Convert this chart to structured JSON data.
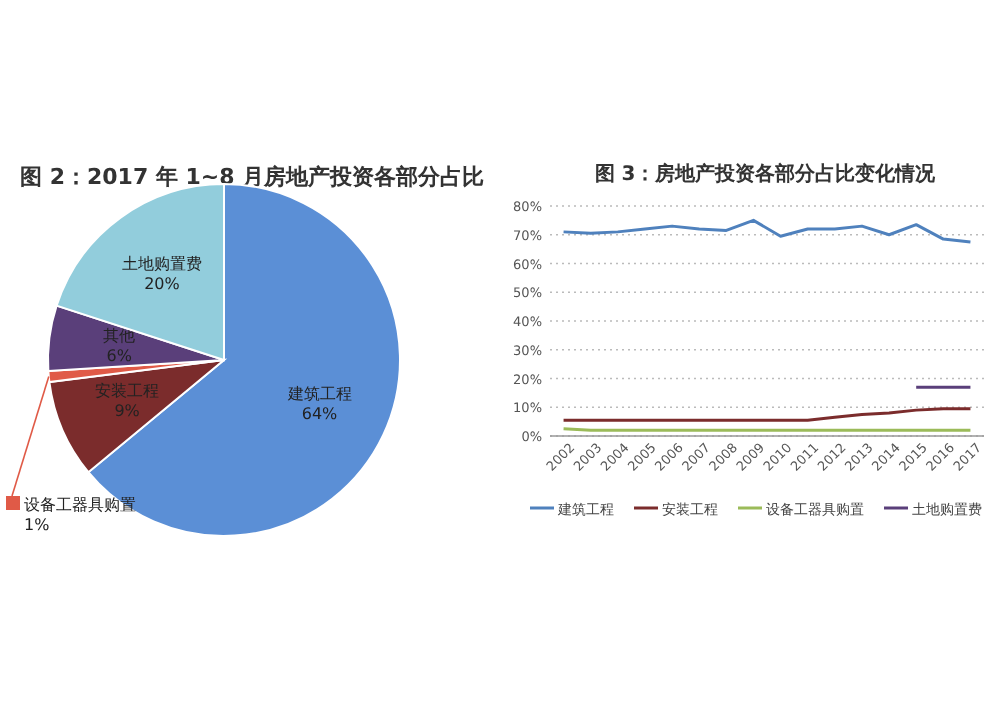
{
  "chart_data": [
    {
      "type": "pie",
      "title": "图 2：2017 年 1~8 月房地产投资各部分占比",
      "categories": [
        "建筑工程",
        "安装工程",
        "设备工器具购置",
        "其他",
        "土地购置费"
      ],
      "values": [
        64,
        9,
        1,
        6,
        20
      ],
      "colors": [
        "#5b8fd6",
        "#7b2c2c",
        "#e05a47",
        "#5a3f7a",
        "#92cddc"
      ],
      "value_labels": [
        "64%",
        "9%",
        "1%",
        "6%",
        "20%"
      ]
    },
    {
      "type": "line",
      "title": "图 3：房地产投资各部分占比变化情况",
      "categories": [
        "2002",
        "2003",
        "2004",
        "2005",
        "2006",
        "2007",
        "2008",
        "2009",
        "2010",
        "2011",
        "2012",
        "2013",
        "2014",
        "2015",
        "2016",
        "2017"
      ],
      "ylim": [
        0,
        80
      ],
      "yticks": [
        {
          "value": 0,
          "label": "0%"
        },
        {
          "value": 10,
          "label": "10%"
        },
        {
          "value": 20,
          "label": "20%"
        },
        {
          "value": 30,
          "label": "30%"
        },
        {
          "value": 40,
          "label": "40%"
        },
        {
          "value": 50,
          "label": "50%"
        },
        {
          "value": 60,
          "label": "60%"
        },
        {
          "value": 70,
          "label": "70%"
        },
        {
          "value": 80,
          "label": "80%"
        }
      ],
      "grid": "y",
      "legend": "bottom",
      "series": [
        {
          "name": "建筑工程",
          "color": "#4f81bd",
          "values": [
            71,
            70.5,
            71,
            72,
            73,
            72,
            71.5,
            75,
            69.5,
            72,
            72,
            73,
            70,
            73.5,
            68.5,
            67.5
          ]
        },
        {
          "name": "安装工程",
          "color": "#7b2c2c",
          "values": [
            5.5,
            5.5,
            5.5,
            5.5,
            5.5,
            5.5,
            5.5,
            5.5,
            5.5,
            5.5,
            6.5,
            7.5,
            8,
            9,
            9.5,
            9.5
          ]
        },
        {
          "name": "设备工器具购置",
          "color": "#9bbb59",
          "values": [
            2.5,
            2,
            2,
            2,
            2,
            2,
            2,
            2,
            2,
            2,
            2,
            2,
            2,
            2,
            2,
            2
          ]
        },
        {
          "name": "土地购置费",
          "color": "#5a3f7a",
          "values": [
            null,
            null,
            null,
            null,
            null,
            null,
            null,
            null,
            null,
            null,
            null,
            null,
            null,
            17,
            17,
            17
          ]
        }
      ]
    }
  ]
}
